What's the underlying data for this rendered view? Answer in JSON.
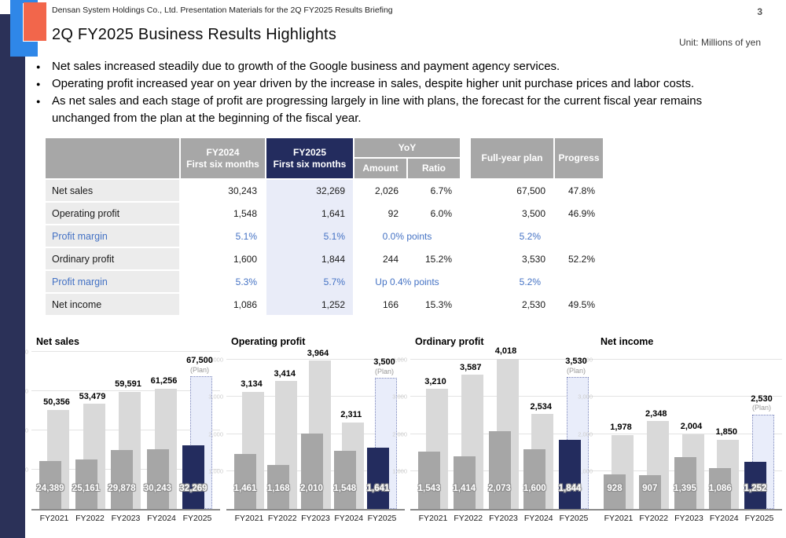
{
  "page": {
    "header_note": "Densan System Holdings Co., Ltd. Presentation Materials for the 2Q FY2025 Results Briefing",
    "page_number": "3",
    "title": "2Q FY2025 Business Results Highlights",
    "unit_note": "Unit: Millions of yen"
  },
  "bullets": [
    "Net sales increased steadily due to growth of the Google business and payment agency services.",
    "Operating profit increased year on year driven by the increase in sales, despite higher unit purchase prices and labor costs.",
    "As net sales and each stage of profit are progressing largely in line with plans, the forecast for the current fiscal year remains unchanged from the plan at the beginning of the fiscal year."
  ],
  "table": {
    "col_headers": {
      "fy2024": "FY2024",
      "fy2024_sub": "First six months",
      "fy2025": "FY2025",
      "fy2025_sub": "First six months",
      "yoy": "YoY",
      "amount": "Amount",
      "ratio": "Ratio",
      "full_year_plan": "Full-year plan",
      "progress": "Progress"
    },
    "rows": [
      {
        "type": "normal",
        "label": "Net sales",
        "fy2024": "30,243",
        "fy2025": "32,269",
        "amount": "2,026",
        "ratio": "6.7%",
        "plan": "67,500",
        "progress": "47.8%"
      },
      {
        "type": "normal",
        "label": "Operating profit",
        "fy2024": "1,548",
        "fy2025": "1,641",
        "amount": "92",
        "ratio": "6.0%",
        "plan": "3,500",
        "progress": "46.9%"
      },
      {
        "type": "margin",
        "label": "Profit margin",
        "fy2024": "5.1%",
        "fy2025": "5.1%",
        "yoy_span": "0.0% points",
        "plan": "5.2%",
        "progress": ""
      },
      {
        "type": "normal",
        "label": "Ordinary profit",
        "fy2024": "1,600",
        "fy2025": "1,844",
        "amount": "244",
        "ratio": "15.2%",
        "plan": "3,530",
        "progress": "52.2%"
      },
      {
        "type": "margin",
        "label": "Profit margin",
        "fy2024": "5.3%",
        "fy2025": "5.7%",
        "yoy_span": "Up 0.4% points",
        "plan": "5.2%",
        "progress": ""
      },
      {
        "type": "normal",
        "label": "Net income",
        "fy2024": "1,086",
        "fy2025": "1,252",
        "amount": "166",
        "ratio": "15.3%",
        "plan": "2,530",
        "progress": "49.5%"
      }
    ]
  },
  "chart_data": [
    {
      "type": "bar",
      "title": "Net sales",
      "categories": [
        "FY2021",
        "FY2022",
        "FY2023",
        "FY2024",
        "FY2025"
      ],
      "series": [
        {
          "name": "Full year",
          "values": [
            50356,
            53479,
            59591,
            61256,
            67500
          ]
        },
        {
          "name": "First six months",
          "values": [
            24389,
            25161,
            29878,
            30243,
            32269
          ]
        }
      ],
      "plan_index": 4,
      "plan_note": "(Plan)",
      "xlabel": "",
      "ylabel": "",
      "ylim": [
        0,
        80000
      ],
      "grid_step": 20000,
      "grid": true,
      "legend": "none"
    },
    {
      "type": "bar",
      "title": "Operating profit",
      "categories": [
        "FY2021",
        "FY2022",
        "FY2023",
        "FY2024",
        "FY2025"
      ],
      "series": [
        {
          "name": "Full year",
          "values": [
            3134,
            3414,
            3964,
            2311,
            3500
          ]
        },
        {
          "name": "First six months",
          "values": [
            1461,
            1168,
            2010,
            1548,
            1641
          ]
        }
      ],
      "plan_index": 4,
      "plan_note": "(Plan)",
      "xlabel": "",
      "ylabel": "",
      "ylim": [
        0,
        4200
      ],
      "grid_step": 1000,
      "grid": true,
      "legend": "none"
    },
    {
      "type": "bar",
      "title": "Ordinary profit",
      "categories": [
        "FY2021",
        "FY2022",
        "FY2023",
        "FY2024",
        "FY2025"
      ],
      "series": [
        {
          "name": "Full year",
          "values": [
            3210,
            3587,
            4018,
            2534,
            3530
          ]
        },
        {
          "name": "First six months",
          "values": [
            1543,
            1414,
            2073,
            1600,
            1844
          ]
        }
      ],
      "plan_index": 4,
      "plan_note": "(Plan)",
      "xlabel": "",
      "ylabel": "",
      "ylim": [
        0,
        4200
      ],
      "grid_step": 1000,
      "grid": true,
      "legend": "none"
    },
    {
      "type": "bar",
      "title": "Net income",
      "categories": [
        "FY2021",
        "FY2022",
        "FY2023",
        "FY2024",
        "FY2025"
      ],
      "series": [
        {
          "name": "Full year",
          "values": [
            1978,
            2348,
            2004,
            1850,
            2530
          ]
        },
        {
          "name": "First six months",
          "values": [
            928,
            907,
            1395,
            1086,
            1252
          ]
        }
      ],
      "plan_index": 4,
      "plan_note": "(Plan)",
      "xlabel": "",
      "ylabel": "",
      "ylim": [
        0,
        4200
      ],
      "grid_step": 1000,
      "grid": true,
      "legend": "none"
    }
  ],
  "colors": {
    "accent_navy": "#232c5e",
    "deco_navy": "#2b3158",
    "deco_blue": "#2f87e8",
    "deco_orange": "#f2664b",
    "header_gray": "#a7a7a7",
    "row_label_bg": "#ececec",
    "fy2025_col_bg": "#e9ecf8",
    "blue_text": "#4472c4",
    "bar_light": "#d9d9d9",
    "bar_mid": "#a6a6a6",
    "plan_fill": "#e9edfa",
    "plan_border": "#7e88bb",
    "gridline": "#e3e3e3",
    "baseline": "#8a8a8a"
  }
}
